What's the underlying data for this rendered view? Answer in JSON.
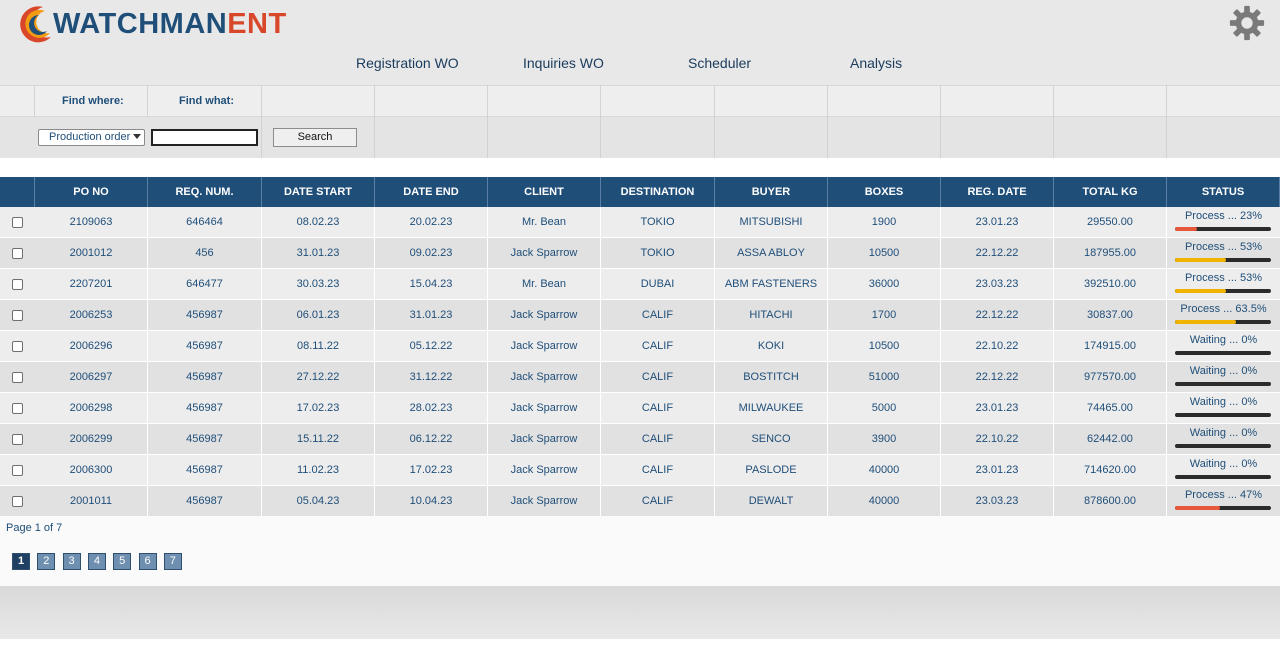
{
  "brand": {
    "main": "WATCHMAN",
    "accent": "ENT",
    "main_color": "#1f4e79",
    "accent_color": "#d9472b"
  },
  "nav": [
    "Registration WO",
    "Inquiries WO",
    "Scheduler",
    "Analysis"
  ],
  "filter": {
    "find_where_label": "Find where:",
    "find_what_label": "Find what:",
    "find_where_value": "Production order",
    "find_what_value": "",
    "search_label": "Search"
  },
  "table": {
    "columns": [
      "PO NO",
      "REQ. NUM.",
      "DATE START",
      "DATE END",
      "CLIENT",
      "DESTINATION",
      "BUYER",
      "BOXES",
      "REG. DATE",
      "TOTAL KG",
      "STATUS"
    ],
    "rows": [
      {
        "po": "2109063",
        "req": "646464",
        "start": "08.02.23",
        "end": "20.02.23",
        "client": "Mr. Bean",
        "dest": "TOKIO",
        "buyer": "MITSUBISHI",
        "boxes": "1900",
        "reg": "23.01.23",
        "kg": "29550.00",
        "status": "Process ... 23%",
        "progress": 0.23,
        "bar_color": "#e8573a"
      },
      {
        "po": "2001012",
        "req": "456",
        "start": "31.01.23",
        "end": "09.02.23",
        "client": "Jack Sparrow",
        "dest": "TOKIO",
        "buyer": "ASSA ABLOY",
        "boxes": "10500",
        "reg": "22.12.22",
        "kg": "187955.00",
        "status": "Process ... 53%",
        "progress": 0.53,
        "bar_color": "#f0b400"
      },
      {
        "po": "2207201",
        "req": "646477",
        "start": "30.03.23",
        "end": "15.04.23",
        "client": "Mr. Bean",
        "dest": "DUBAI",
        "buyer": "ABM FASTENERS",
        "boxes": "36000",
        "reg": "23.03.23",
        "kg": "392510.00",
        "status": "Process ... 53%",
        "progress": 0.53,
        "bar_color": "#f0b400"
      },
      {
        "po": "2006253",
        "req": "456987",
        "start": "06.01.23",
        "end": "31.01.23",
        "client": "Jack Sparrow",
        "dest": "CALIF",
        "buyer": "HITACHI",
        "boxes": "1700",
        "reg": "22.12.22",
        "kg": "30837.00",
        "status": "Process ... 63.5%",
        "progress": 0.635,
        "bar_color": "#f0b400"
      },
      {
        "po": "2006296",
        "req": "456987",
        "start": "08.11.22",
        "end": "05.12.22",
        "client": "Jack Sparrow",
        "dest": "CALIF",
        "buyer": "KOKI",
        "boxes": "10500",
        "reg": "22.10.22",
        "kg": "174915.00",
        "status": "Waiting ... 0%",
        "progress": 0,
        "bar_color": "#2b2b2b"
      },
      {
        "po": "2006297",
        "req": "456987",
        "start": "27.12.22",
        "end": "31.12.22",
        "client": "Jack Sparrow",
        "dest": "CALIF",
        "buyer": "BOSTITCH",
        "boxes": "51000",
        "reg": "22.12.22",
        "kg": "977570.00",
        "status": "Waiting ... 0%",
        "progress": 0,
        "bar_color": "#2b2b2b"
      },
      {
        "po": "2006298",
        "req": "456987",
        "start": "17.02.23",
        "end": "28.02.23",
        "client": "Jack Sparrow",
        "dest": "CALIF",
        "buyer": "MILWAUKEE",
        "boxes": "5000",
        "reg": "23.01.23",
        "kg": "74465.00",
        "status": "Waiting ... 0%",
        "progress": 0,
        "bar_color": "#2b2b2b"
      },
      {
        "po": "2006299",
        "req": "456987",
        "start": "15.11.22",
        "end": "06.12.22",
        "client": "Jack Sparrow",
        "dest": "CALIF",
        "buyer": "SENCO",
        "boxes": "3900",
        "reg": "22.10.22",
        "kg": "62442.00",
        "status": "Waiting ... 0%",
        "progress": 0,
        "bar_color": "#2b2b2b"
      },
      {
        "po": "2006300",
        "req": "456987",
        "start": "11.02.23",
        "end": "17.02.23",
        "client": "Jack Sparrow",
        "dest": "CALIF",
        "buyer": "PASLODE",
        "boxes": "40000",
        "reg": "23.01.23",
        "kg": "714620.00",
        "status": "Waiting ... 0%",
        "progress": 0,
        "bar_color": "#2b2b2b"
      },
      {
        "po": "2001011",
        "req": "456987",
        "start": "05.04.23",
        "end": "10.04.23",
        "client": "Jack Sparrow",
        "dest": "CALIF",
        "buyer": "DEWALT",
        "boxes": "40000",
        "reg": "23.03.23",
        "kg": "878600.00",
        "status": "Process ... 47%",
        "progress": 0.47,
        "bar_color": "#e8573a"
      }
    ]
  },
  "pagination": {
    "info": "Page 1 of 7",
    "pages": [
      "1",
      "2",
      "3",
      "4",
      "5",
      "6",
      "7"
    ],
    "current": "1"
  },
  "icons": {
    "settings": "gear-icon",
    "logo": "logo-crescent-icon"
  }
}
